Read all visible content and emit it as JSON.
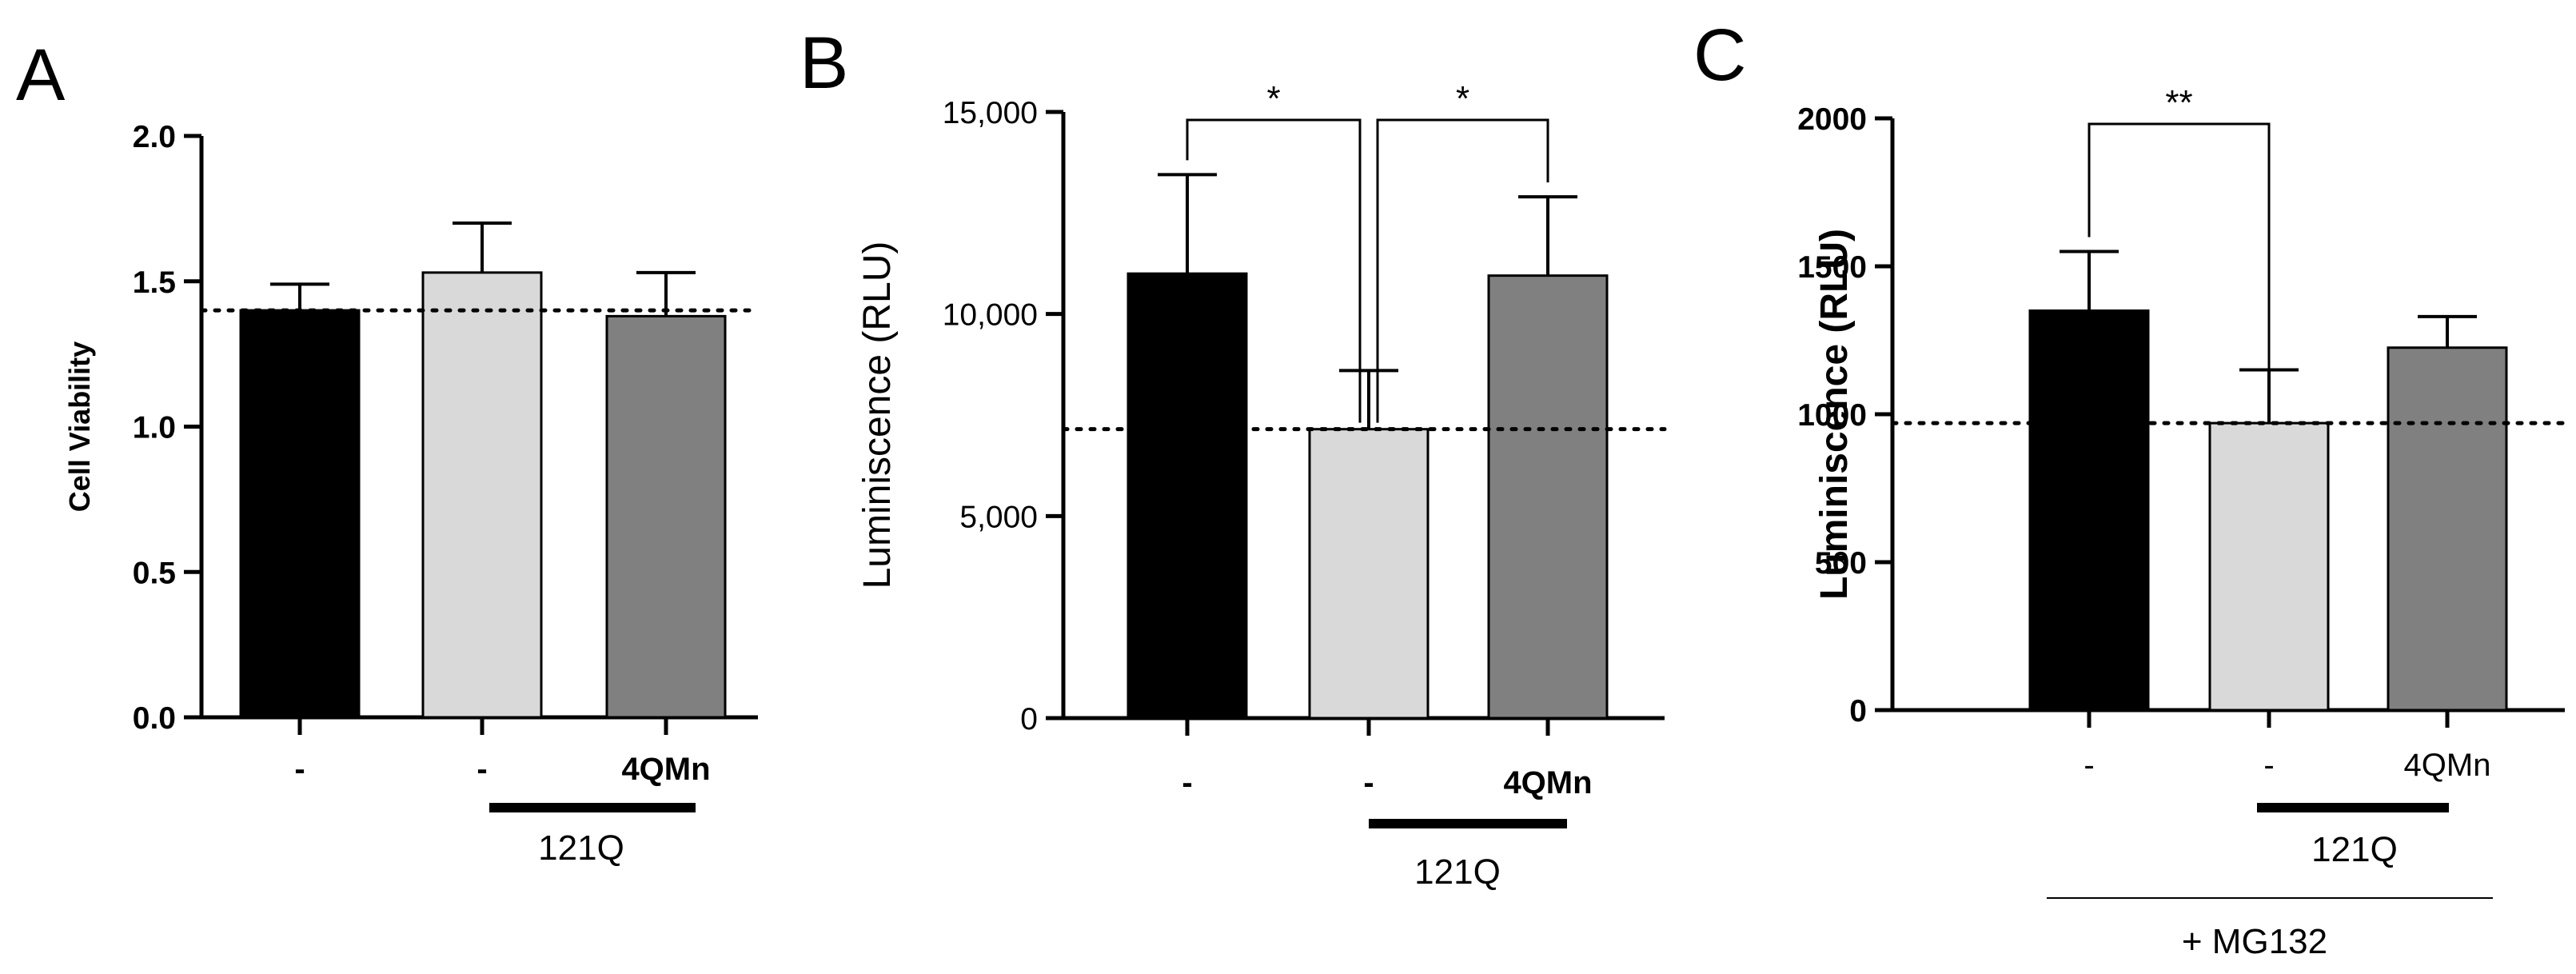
{
  "chart_data": [
    {
      "panel": "A",
      "type": "bar",
      "ylabel": "Cell Viability",
      "ylim": [
        0,
        2.0
      ],
      "yticks": [
        "0.0",
        "0.5",
        "1.0",
        "1.5",
        "2.0"
      ],
      "yticks_values": [
        0,
        0.5,
        1.0,
        1.5,
        2.0
      ],
      "categories": [
        "-",
        "-",
        "4QMn"
      ],
      "values": [
        1.4,
        1.53,
        1.38
      ],
      "errors": [
        0.09,
        0.17,
        0.15
      ],
      "colors": [
        "#000000",
        "#d9d9d9",
        "#808080"
      ],
      "reference_line": 1.4,
      "group_label": "121Q",
      "significance": []
    },
    {
      "panel": "B",
      "type": "bar",
      "ylabel": "Luminiscence (RLU)",
      "ylim": [
        0,
        15000
      ],
      "yticks": [
        "0",
        "5,000",
        "10,000",
        "15,000"
      ],
      "yticks_values": [
        0,
        5000,
        10000,
        15000
      ],
      "categories": [
        "-",
        "-",
        "4QMn"
      ],
      "values": [
        11000,
        7150,
        10950
      ],
      "errors": [
        2450,
        1450,
        1950
      ],
      "colors": [
        "#000000",
        "#d9d9d9",
        "#808080"
      ],
      "reference_line": 7150,
      "group_label": "121Q",
      "significance": [
        {
          "from": 0,
          "to": 1,
          "label": "*"
        },
        {
          "from": 1,
          "to": 2,
          "label": "*"
        }
      ]
    },
    {
      "panel": "C",
      "type": "bar",
      "ylabel": "Luminiscence (RLU)",
      "ylim": [
        0,
        2000
      ],
      "yticks": [
        "0",
        "500",
        "1000",
        "1500",
        "2000"
      ],
      "yticks_values": [
        0,
        500,
        1000,
        1500,
        2000
      ],
      "categories": [
        "-",
        "-",
        "4QMn"
      ],
      "values": [
        1350,
        970,
        1225
      ],
      "errors": [
        200,
        180,
        105
      ],
      "colors": [
        "#000000",
        "#d9d9d9",
        "#808080"
      ],
      "reference_line": 970,
      "group_label": "121Q",
      "outer_label": "+ MG132",
      "significance": [
        {
          "from": 0,
          "to": 1,
          "label": "**"
        }
      ]
    }
  ]
}
